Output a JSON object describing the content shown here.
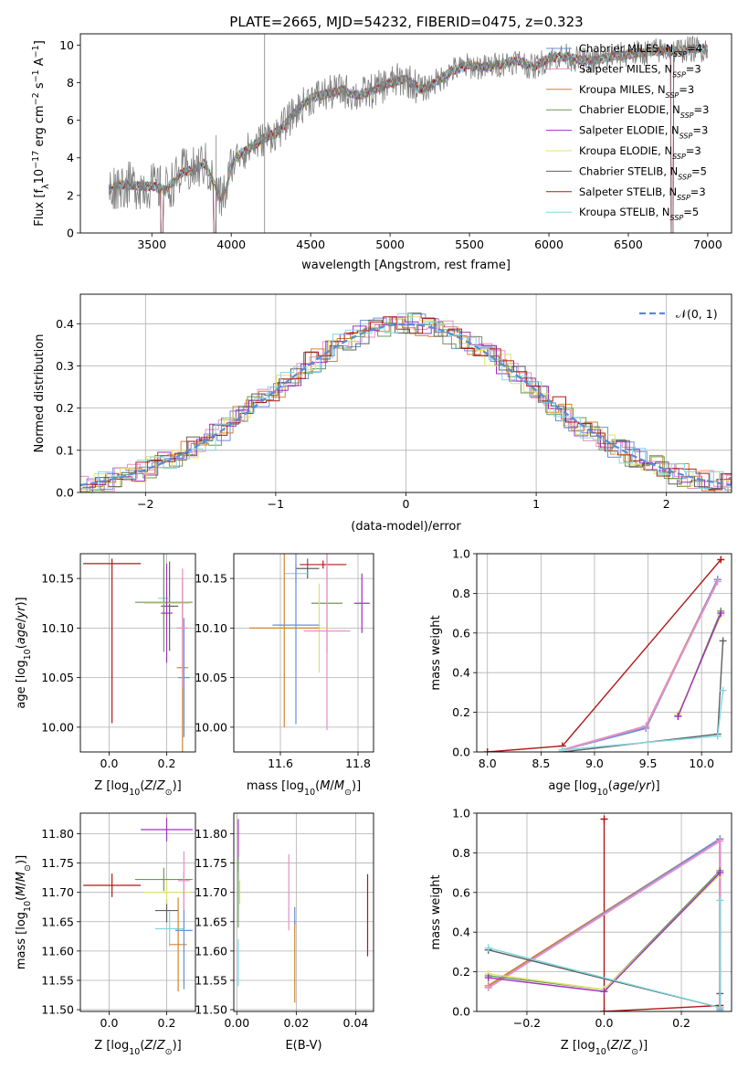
{
  "figure_title": "PLATE=2665, MJD=54232, FIBERID=0475, z=0.323",
  "colors": {
    "Chabrier MILES": "#6a8fd8",
    "Salpeter MILES": "#e890c8",
    "Kroupa MILES": "#d0862c",
    "Chabrier ELODIE": "#6a9a58",
    "Salpeter ELODIE": "#a030c0",
    "Kroupa ELODIE": "#e0e070",
    "Chabrier STELIB": "#606060",
    "Salpeter STELIB": "#b01818",
    "Kroupa STELIB": "#80d8e0",
    "data": "#808080",
    "normal": "#5b8ad6"
  },
  "chart_data": [
    {
      "id": "spectrum",
      "type": "line",
      "xlabel": "wavelength [Angstrom, rest frame]",
      "ylabel": "Flux [f_λ10^-17 erg cm^-2 s^-1 A^-1]",
      "xlim": [
        3050,
        7150
      ],
      "ylim": [
        0,
        10.6
      ],
      "xticks": [
        3500,
        4000,
        4500,
        5000,
        5500,
        6000,
        6500,
        7000
      ],
      "yticks": [
        0,
        2,
        4,
        6,
        8,
        10
      ],
      "legend_position": "upper right",
      "legend": [
        {
          "model": "Chabrier MILES",
          "text": "Chabrier MILES, N",
          "sub": "SSP",
          "tail": "=4"
        },
        {
          "model": "Salpeter MILES",
          "text": "Salpeter MILES, N",
          "sub": "SSP",
          "tail": "=3"
        },
        {
          "model": "Kroupa MILES",
          "text": "Kroupa MILES, N",
          "sub": "SSP",
          "tail": "=3"
        },
        {
          "model": "Chabrier ELODIE",
          "text": "Chabrier ELODIE, N",
          "sub": "SSP",
          "tail": "=3"
        },
        {
          "model": "Salpeter ELODIE",
          "text": "Salpeter ELODIE, N",
          "sub": "SSP",
          "tail": "=3"
        },
        {
          "model": "Kroupa ELODIE",
          "text": "Kroupa ELODIE, N",
          "sub": "SSP",
          "tail": "=3"
        },
        {
          "model": "Chabrier STELIB",
          "text": "Chabrier STELIB, N",
          "sub": "SSP",
          "tail": "=5"
        },
        {
          "model": "Salpeter STELIB",
          "text": "Salpeter STELIB, N",
          "sub": "SSP",
          "tail": "=3"
        },
        {
          "model": "Kroupa STELIB",
          "text": "Kroupa STELIB, N",
          "sub": "SSP",
          "tail": "=5"
        }
      ],
      "continuum": [
        [
          3230,
          2.3
        ],
        [
          3300,
          2.6
        ],
        [
          3400,
          2.5
        ],
        [
          3500,
          2.5
        ],
        [
          3580,
          2.3
        ],
        [
          3650,
          2.8
        ],
        [
          3700,
          3.3
        ],
        [
          3760,
          3.3
        ],
        [
          3830,
          3.7
        ],
        [
          3880,
          2.9
        ],
        [
          3930,
          1.8
        ],
        [
          3970,
          2.3
        ],
        [
          4000,
          3.6
        ],
        [
          4050,
          4.2
        ],
        [
          4100,
          4.4
        ],
        [
          4200,
          5.0
        ],
        [
          4300,
          5.4
        ],
        [
          4400,
          6.4
        ],
        [
          4500,
          7.2
        ],
        [
          4600,
          7.4
        ],
        [
          4700,
          7.6
        ],
        [
          4800,
          7.3
        ],
        [
          4900,
          7.6
        ],
        [
          5000,
          8.0
        ],
        [
          5100,
          8.2
        ],
        [
          5200,
          7.6
        ],
        [
          5300,
          8.1
        ],
        [
          5400,
          8.7
        ],
        [
          5500,
          8.9
        ],
        [
          5600,
          8.8
        ],
        [
          5700,
          9.0
        ],
        [
          5800,
          9.2
        ],
        [
          5900,
          8.8
        ],
        [
          6000,
          9.3
        ],
        [
          6100,
          9.4
        ],
        [
          6200,
          9.2
        ],
        [
          6300,
          9.2
        ],
        [
          6400,
          9.4
        ],
        [
          6500,
          9.5
        ],
        [
          6600,
          9.6
        ],
        [
          6700,
          9.7
        ],
        [
          6800,
          9.7
        ],
        [
          6900,
          9.8
        ],
        [
          7000,
          9.8
        ]
      ],
      "data_range": [
        3230,
        7000
      ],
      "dropouts": [
        [
          3555,
          3570
        ],
        [
          3890,
          3905
        ],
        [
          6770,
          6785
        ]
      ],
      "spikes": [
        [
          4210,
          10.6
        ],
        [
          3905,
          5.2
        ]
      ]
    },
    {
      "id": "residuals",
      "type": "histogram",
      "xlabel": "(data-model)/error",
      "ylabel": "Normed distribution",
      "xlim": [
        -2.5,
        2.5
      ],
      "ylim": [
        0,
        0.47
      ],
      "xticks": [
        -2,
        -1,
        0,
        1,
        2
      ],
      "yticks": [
        0.0,
        0.1,
        0.2,
        0.3,
        0.4
      ],
      "bin_width": 0.1,
      "legend_position": "upper right",
      "legend": [
        {
          "label": "N(0,1)",
          "display": "𝒩(0, 1)"
        }
      ],
      "reference_curve": "standard normal density"
    },
    {
      "id": "age_vs_Z",
      "type": "errorbar",
      "xlabel": "Z [log10(Z/Z⊙)]",
      "ylabel": "age  [log10(age/yr)]",
      "xlim": [
        -0.1,
        0.3
      ],
      "ylim": [
        9.975,
        10.175
      ],
      "xticks": [
        0.0,
        0.2
      ],
      "yticks": [
        10.0,
        10.05,
        10.1,
        10.15
      ],
      "points": [
        {
          "model": "Salpeter STELIB",
          "x": 0.01,
          "xerr": 0.1,
          "y": 10.087,
          "yerr": 0.083,
          "hy": 10.165
        },
        {
          "model": "Chabrier STELIB",
          "x": 0.21,
          "xerr": 0.03,
          "y": 10.122,
          "yerr": 0.045
        },
        {
          "model": "Kroupa STELIB",
          "x": 0.19,
          "xerr": 0.02,
          "y": 10.13,
          "yerr": 0.03
        },
        {
          "model": "Chabrier ELODIE",
          "x": 0.19,
          "xerr": 0.1,
          "y": 10.126,
          "yerr": 0.05
        },
        {
          "model": "Kroupa ELODIE",
          "x": 0.2,
          "xerr": 0.08,
          "y": 10.125,
          "yerr": 0.02
        },
        {
          "model": "Salpeter ELODIE",
          "x": 0.2,
          "xerr": 0.02,
          "y": 10.115,
          "yerr": 0.05
        },
        {
          "model": "Kroupa MILES",
          "x": 0.255,
          "xerr": 0.02,
          "y": 10.06,
          "yerr": 0.09
        },
        {
          "model": "Chabrier MILES",
          "x": 0.26,
          "xerr": 0.02,
          "y": 10.05,
          "yerr": 0.06
        },
        {
          "model": "Salpeter MILES",
          "x": 0.255,
          "xerr": 0.02,
          "y": 10.1,
          "yerr": 0.06
        }
      ]
    },
    {
      "id": "age_vs_mass",
      "type": "errorbar",
      "xlabel": "mass [log10(M/M⊙)]",
      "ylabel": "",
      "xlim": [
        11.48,
        11.84
      ],
      "ylim": [
        9.975,
        10.175
      ],
      "xticks": [
        11.6,
        11.8
      ],
      "yticks": [
        10.0,
        10.05,
        10.1,
        10.15
      ],
      "points": [
        {
          "model": "Salpeter STELIB",
          "x": 11.71,
          "xerr": 0.06,
          "y": 10.164,
          "yerr": 0.004
        },
        {
          "model": "Chabrier STELIB",
          "x": 11.67,
          "xerr": 0.03,
          "y": 10.16,
          "yerr": 0.01
        },
        {
          "model": "Kroupa STELIB",
          "x": 11.64,
          "xerr": 0.03,
          "y": 10.155,
          "yerr": 0.01
        },
        {
          "model": "Chabrier ELODIE",
          "x": 11.72,
          "xerr": 0.04,
          "y": 10.125,
          "yerr": 0.05
        },
        {
          "model": "Kroupa ELODIE",
          "x": 11.7,
          "xerr": 0.03,
          "y": 10.1,
          "yerr": 0.045
        },
        {
          "model": "Salpeter ELODIE",
          "x": 11.81,
          "xerr": 0.02,
          "y": 10.125,
          "yerr": 0.03
        },
        {
          "model": "Kroupa MILES",
          "x": 11.61,
          "xerr": 0.09,
          "y": 10.1,
          "yerr": 0.1
        },
        {
          "model": "Chabrier MILES",
          "x": 11.64,
          "xerr": 0.06,
          "y": 10.103,
          "yerr": 0.1
        },
        {
          "model": "Salpeter MILES",
          "x": 11.72,
          "xerr": 0.06,
          "y": 10.097,
          "yerr": 0.1
        }
      ]
    },
    {
      "id": "weight_vs_age",
      "type": "line",
      "xlabel": "age  [log10(age/yr)]",
      "ylabel": "mass weight",
      "xlim": [
        7.9,
        10.28
      ],
      "ylim": [
        0,
        1.0
      ],
      "xticks": [
        8.0,
        8.5,
        9.0,
        9.5,
        10.0
      ],
      "yticks": [
        0.0,
        0.2,
        0.4,
        0.6,
        0.8,
        1.0
      ],
      "series": [
        {
          "model": "Salpeter STELIB",
          "x": [
            8.0,
            8.7,
            10.18
          ],
          "y": [
            0.0,
            0.03,
            0.97
          ]
        },
        {
          "model": "Kroupa MILES",
          "x": [
            8.7,
            9.48,
            10.15
          ],
          "y": [
            0.01,
            0.13,
            0.87
          ]
        },
        {
          "model": "Chabrier MILES",
          "x": [
            8.7,
            9.48,
            10.15
          ],
          "y": [
            0.01,
            0.12,
            0.87
          ]
        },
        {
          "model": "Salpeter MILES",
          "x": [
            8.7,
            9.48,
            10.15
          ],
          "y": [
            0.01,
            0.13,
            0.86
          ]
        },
        {
          "model": "Chabrier ELODIE",
          "x": [
            9.78,
            10.18
          ],
          "y": [
            0.18,
            0.71
          ]
        },
        {
          "model": "Kroupa ELODIE",
          "x": [
            9.78,
            10.18
          ],
          "y": [
            0.19,
            0.69
          ]
        },
        {
          "model": "Salpeter ELODIE",
          "x": [
            9.78,
            10.18
          ],
          "y": [
            0.18,
            0.7
          ]
        },
        {
          "model": "Chabrier STELIB",
          "x": [
            8.7,
            10.15,
            10.2
          ],
          "y": [
            0.0,
            0.09,
            0.56
          ]
        },
        {
          "model": "Kroupa STELIB",
          "x": [
            8.7,
            10.15,
            10.2
          ],
          "y": [
            0.01,
            0.08,
            0.31
          ]
        }
      ]
    },
    {
      "id": "mass_vs_Z",
      "type": "errorbar",
      "xlabel": "Z [log10(Z/Z⊙)]",
      "ylabel": "mass [log10(M/M⊙)]",
      "xlim": [
        -0.1,
        0.3
      ],
      "ylim": [
        11.497,
        11.835
      ],
      "xticks": [
        0.0,
        0.2
      ],
      "yticks": [
        11.5,
        11.55,
        11.6,
        11.65,
        11.7,
        11.75,
        11.8
      ],
      "points": [
        {
          "model": "Salpeter STELIB",
          "x": 0.01,
          "xerr": 0.1,
          "y": 11.712,
          "yerr": 0.02
        },
        {
          "model": "Chabrier STELIB",
          "x": 0.2,
          "xerr": 0.04,
          "y": 11.669,
          "yerr": 0.02
        },
        {
          "model": "Kroupa STELIB",
          "x": 0.21,
          "xerr": 0.05,
          "y": 11.638,
          "yerr": 0.03
        },
        {
          "model": "Chabrier ELODIE",
          "x": 0.19,
          "xerr": 0.1,
          "y": 11.722,
          "yerr": 0.02
        },
        {
          "model": "Kroupa ELODIE",
          "x": 0.2,
          "xerr": 0.08,
          "y": 11.7,
          "yerr": 0.02
        },
        {
          "model": "Salpeter ELODIE",
          "x": 0.2,
          "xerr": 0.09,
          "y": 11.807,
          "yerr": 0.02
        },
        {
          "model": "Kroupa MILES",
          "x": 0.24,
          "xerr": 0.03,
          "y": 11.611,
          "yerr": 0.08
        },
        {
          "model": "Chabrier MILES",
          "x": 0.26,
          "xerr": 0.03,
          "y": 11.635,
          "yerr": 0.1
        },
        {
          "model": "Salpeter MILES",
          "x": 0.26,
          "xerr": 0.02,
          "y": 11.72,
          "yerr": 0.05
        }
      ]
    },
    {
      "id": "mass_vs_ebv",
      "type": "errorbar",
      "xlabel": "E(B-V)",
      "ylabel": "",
      "xlim": [
        -0.001,
        0.046
      ],
      "ylim": [
        11.497,
        11.835
      ],
      "xticks": [
        0.0,
        0.02,
        0.04
      ],
      "yticks": [
        11.5,
        11.55,
        11.6,
        11.65,
        11.7,
        11.75,
        11.8
      ],
      "points": [
        {
          "model": "Salpeter STELIB",
          "x": 0.044,
          "xerr": 0,
          "y": 11.661,
          "yerr": 0.07
        },
        {
          "model": "Salpeter ELODIE",
          "x": 0.0005,
          "xerr": 0,
          "y": 11.78,
          "yerr": 0.045
        },
        {
          "model": "Chabrier ELODIE",
          "x": 0.0005,
          "xerr": 0,
          "y": 11.7,
          "yerr": 0.06
        },
        {
          "model": "Kroupa STELIB",
          "x": 0.0005,
          "xerr": 0,
          "y": 11.58,
          "yerr": 0.04
        },
        {
          "model": "Kroupa ELODIE",
          "x": 0.001,
          "xerr": 0,
          "y": 11.7,
          "yerr": 0.02
        },
        {
          "model": "Salpeter MILES",
          "x": 0.0175,
          "xerr": 0,
          "y": 11.7,
          "yerr": 0.065
        },
        {
          "model": "Kroupa MILES",
          "x": 0.0195,
          "xerr": 0,
          "y": 11.582,
          "yerr": 0.07
        },
        {
          "model": "Chabrier MILES",
          "x": 0.0195,
          "xerr": 0,
          "y": 11.66,
          "yerr": 0.015
        }
      ]
    },
    {
      "id": "weight_vs_Z",
      "type": "line",
      "xlabel": "Z [log10(Z/Z⊙)]",
      "ylabel": "mass weight",
      "xlim": [
        -0.33,
        0.33
      ],
      "ylim": [
        0,
        1.0
      ],
      "xticks": [
        -0.2,
        0.0,
        0.2
      ],
      "yticks": [
        0.0,
        0.2,
        0.4,
        0.6,
        0.8,
        1.0
      ],
      "series": [
        {
          "model": "Salpeter STELIB",
          "x": [
            0.0,
            0.0,
            0.3
          ],
          "y": [
            0.97,
            0.0,
            0.03
          ]
        },
        {
          "model": "Kroupa MILES",
          "x": [
            -0.3,
            0.3,
            0.3
          ],
          "y": [
            0.13,
            0.87,
            0.0
          ]
        },
        {
          "model": "Chabrier MILES",
          "x": [
            -0.3,
            0.3,
            0.3
          ],
          "y": [
            0.12,
            0.87,
            0.01
          ]
        },
        {
          "model": "Salpeter MILES",
          "x": [
            -0.3,
            0.3,
            0.3
          ],
          "y": [
            0.12,
            0.86,
            0.02
          ]
        },
        {
          "model": "Chabrier ELODIE",
          "x": [
            -0.3,
            0.0,
            0.3
          ],
          "y": [
            0.18,
            0.11,
            0.71
          ]
        },
        {
          "model": "Kroupa ELODIE",
          "x": [
            -0.3,
            0.0,
            0.3
          ],
          "y": [
            0.19,
            0.11,
            0.69
          ]
        },
        {
          "model": "Salpeter ELODIE",
          "x": [
            -0.3,
            0.0,
            0.3
          ],
          "y": [
            0.17,
            0.1,
            0.7
          ]
        },
        {
          "model": "Chabrier STELIB",
          "x": [
            -0.3,
            0.3,
            0.3
          ],
          "y": [
            0.31,
            0.02,
            0.09
          ]
        },
        {
          "model": "Kroupa STELIB",
          "x": [
            -0.3,
            0.3,
            0.3
          ],
          "y": [
            0.32,
            0.02,
            0.56
          ]
        }
      ]
    }
  ]
}
